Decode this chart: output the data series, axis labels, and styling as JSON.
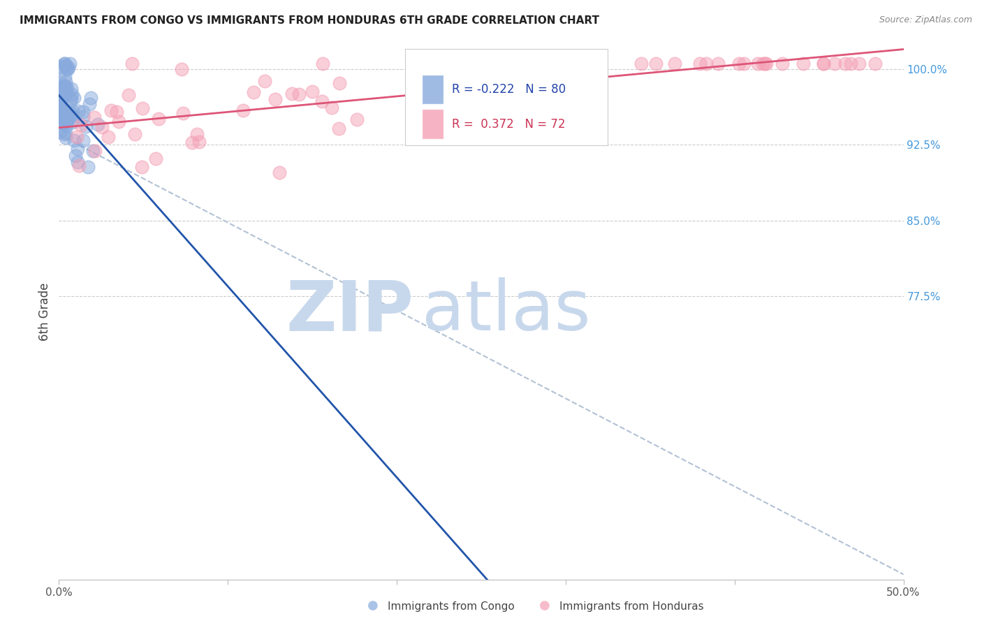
{
  "title": "IMMIGRANTS FROM CONGO VS IMMIGRANTS FROM HONDURAS 6TH GRADE CORRELATION CHART",
  "source": "Source: ZipAtlas.com",
  "ylabel": "6th Grade",
  "ytick_labels": [
    "100.0%",
    "92.5%",
    "85.0%",
    "77.5%"
  ],
  "ytick_values": [
    1.0,
    0.925,
    0.85,
    0.775
  ],
  "xlim": [
    0.0,
    0.5
  ],
  "ylim": [
    0.495,
    1.025
  ],
  "congo_color": "#88aadd",
  "honduras_color": "#f4a0b5",
  "congo_R": -0.222,
  "congo_N": 80,
  "honduras_R": 0.372,
  "honduras_N": 72,
  "congo_line_color": "#2255aa",
  "honduras_line_color": "#dd5577",
  "dashed_line_color": "#aabbd0",
  "watermark_zip": "ZIP",
  "watermark_atlas": "atlas",
  "watermark_color_zip": "#c8d8ec",
  "watermark_color_atlas": "#c8d8ec",
  "bg_color": "#ffffff"
}
